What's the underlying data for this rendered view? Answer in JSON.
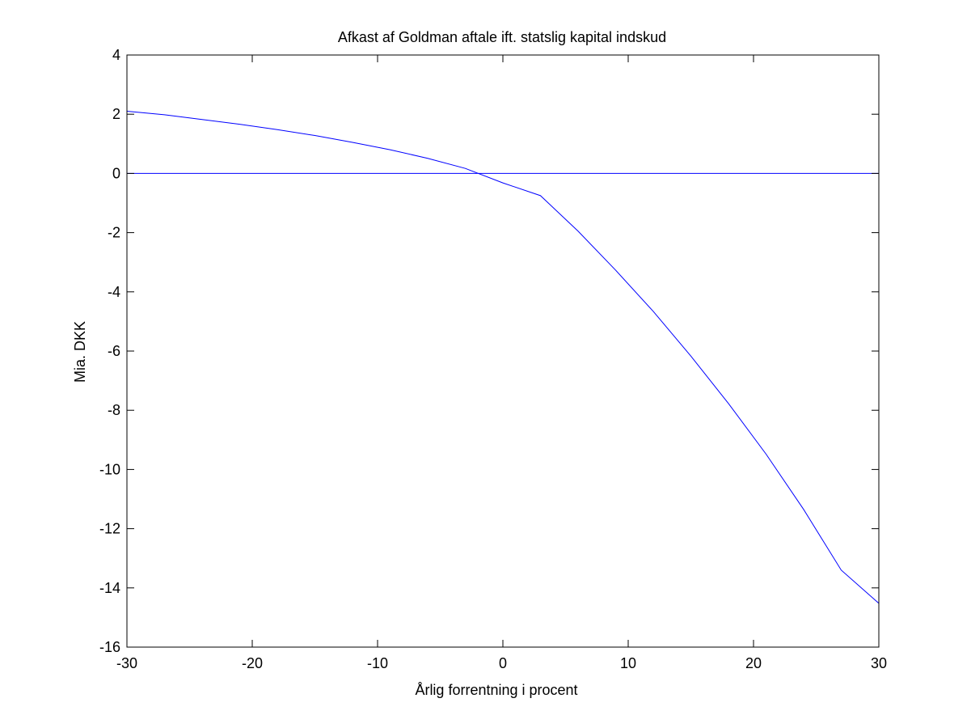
{
  "chart_data": {
    "type": "line",
    "title": "Afkast af Goldman aftale ift. statslig kapital indskud",
    "xlabel": "Årlig forrentning i procent",
    "ylabel": "Mia. DKK",
    "xlim": [
      -30,
      30
    ],
    "ylim": [
      -16,
      4
    ],
    "xticks": [
      -30,
      -20,
      -10,
      0,
      10,
      20,
      30
    ],
    "yticks": [
      4,
      2,
      0,
      -2,
      -4,
      -6,
      -8,
      -10,
      -12,
      -14,
      -16
    ],
    "grid": false,
    "legend": false,
    "line_color": "#0000ff",
    "series": [
      {
        "x": [
          -30,
          -27,
          -24,
          -21,
          -18,
          -15,
          -12,
          -9,
          -6,
          -3,
          0,
          3,
          6,
          9,
          12,
          15,
          18,
          21,
          24,
          27,
          30
        ],
        "y": [
          2.1,
          1.98,
          1.82,
          1.66,
          1.48,
          1.28,
          1.05,
          0.8,
          0.51,
          0.17,
          -0.32,
          -0.75,
          -1.95,
          -3.27,
          -4.66,
          -6.17,
          -7.77,
          -9.48,
          -11.35,
          -13.4,
          -14.52
        ]
      },
      {
        "x": [
          -30,
          30
        ],
        "y": [
          0,
          0
        ]
      }
    ]
  }
}
